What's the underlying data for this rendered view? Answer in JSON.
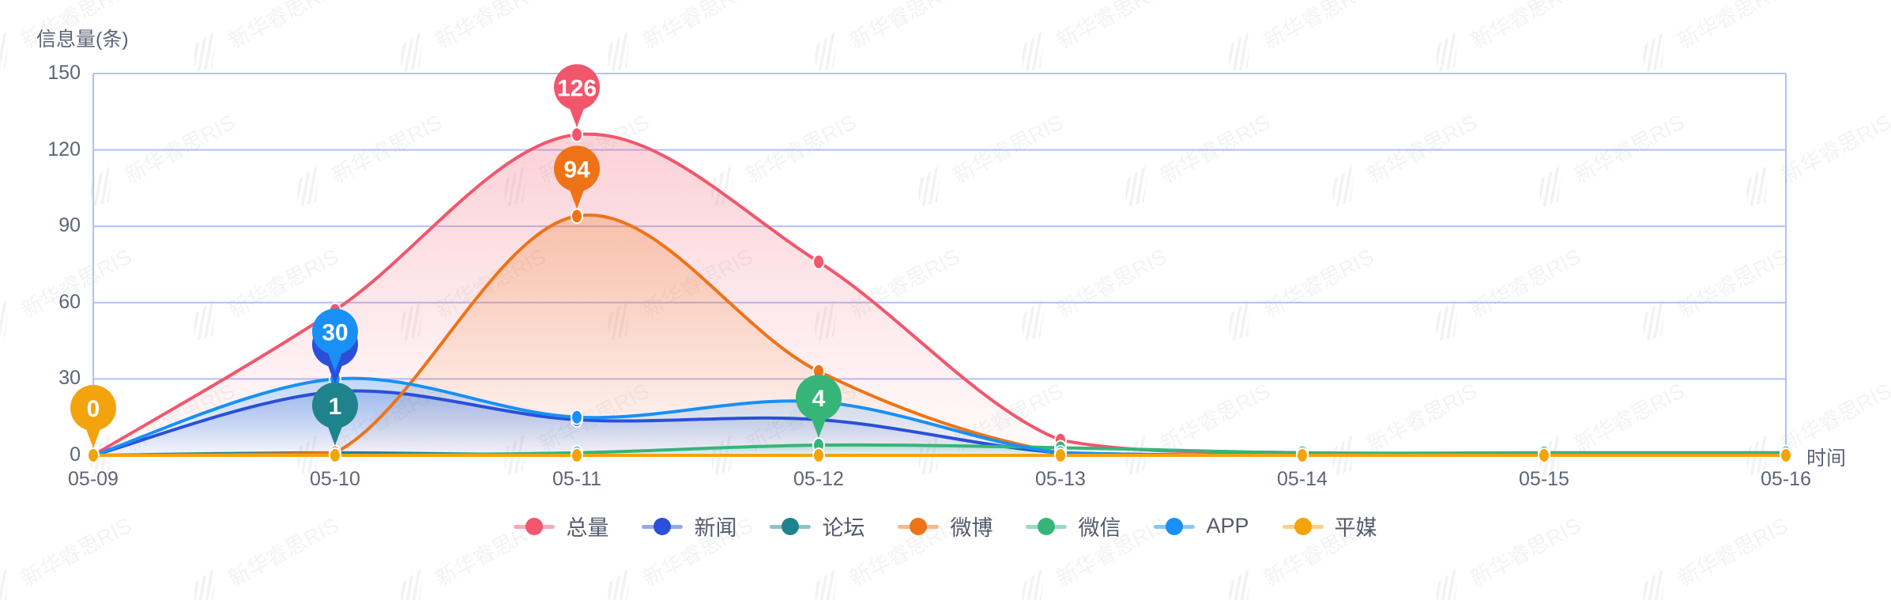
{
  "watermark": {
    "text": "新华睿思RIS"
  },
  "chart_data": {
    "type": "line",
    "smooth": true,
    "grid": true,
    "legend_position": "bottom",
    "ylabel": "信息量(条)",
    "xlabel": "时间",
    "ylim": [
      0,
      150
    ],
    "yticks": [
      0,
      30,
      60,
      90,
      120,
      150
    ],
    "categories": [
      "05-09",
      "05-10",
      "05-11",
      "05-12",
      "05-13",
      "05-14",
      "05-15",
      "05-16"
    ],
    "grid_color": "#B3BFF5",
    "text_color": "#5E6478",
    "series": [
      {
        "id": "total",
        "name": "总量",
        "color": "#F2566C",
        "values": [
          0,
          57,
          126,
          76,
          6,
          1,
          1,
          1
        ]
      },
      {
        "id": "news",
        "name": "新闻",
        "color": "#2B4FD9",
        "values": [
          0,
          25,
          14,
          14,
          1,
          0,
          0,
          0
        ]
      },
      {
        "id": "forum",
        "name": "论坛",
        "color": "#1F838D",
        "values": [
          0,
          1,
          0,
          0,
          0,
          0,
          0,
          0
        ]
      },
      {
        "id": "weibo",
        "name": "微博",
        "color": "#EE7316",
        "values": [
          0,
          1,
          94,
          33,
          1,
          0,
          0,
          0
        ]
      },
      {
        "id": "wechat",
        "name": "微信",
        "color": "#36B578",
        "values": [
          0,
          0,
          1,
          4,
          3,
          1,
          1,
          1
        ]
      },
      {
        "id": "app",
        "name": "APP",
        "color": "#1890F5",
        "values": [
          0,
          30,
          15,
          21,
          1,
          0,
          0,
          0
        ]
      },
      {
        "id": "print",
        "name": "平媒",
        "color": "#F3A40C",
        "values": [
          0,
          0,
          0,
          0,
          0,
          0,
          0,
          0
        ]
      }
    ],
    "pins": [
      {
        "series": "print",
        "category": "05-09",
        "label": "0"
      },
      {
        "series": "news",
        "category": "05-10",
        "label": ""
      },
      {
        "series": "app",
        "category": "05-10",
        "label": "30"
      },
      {
        "series": "forum",
        "category": "05-10",
        "label": "1"
      },
      {
        "series": "total",
        "category": "05-11",
        "label": "126"
      },
      {
        "series": "weibo",
        "category": "05-11",
        "label": "94"
      },
      {
        "series": "wechat",
        "category": "05-12",
        "label": "4"
      }
    ]
  }
}
